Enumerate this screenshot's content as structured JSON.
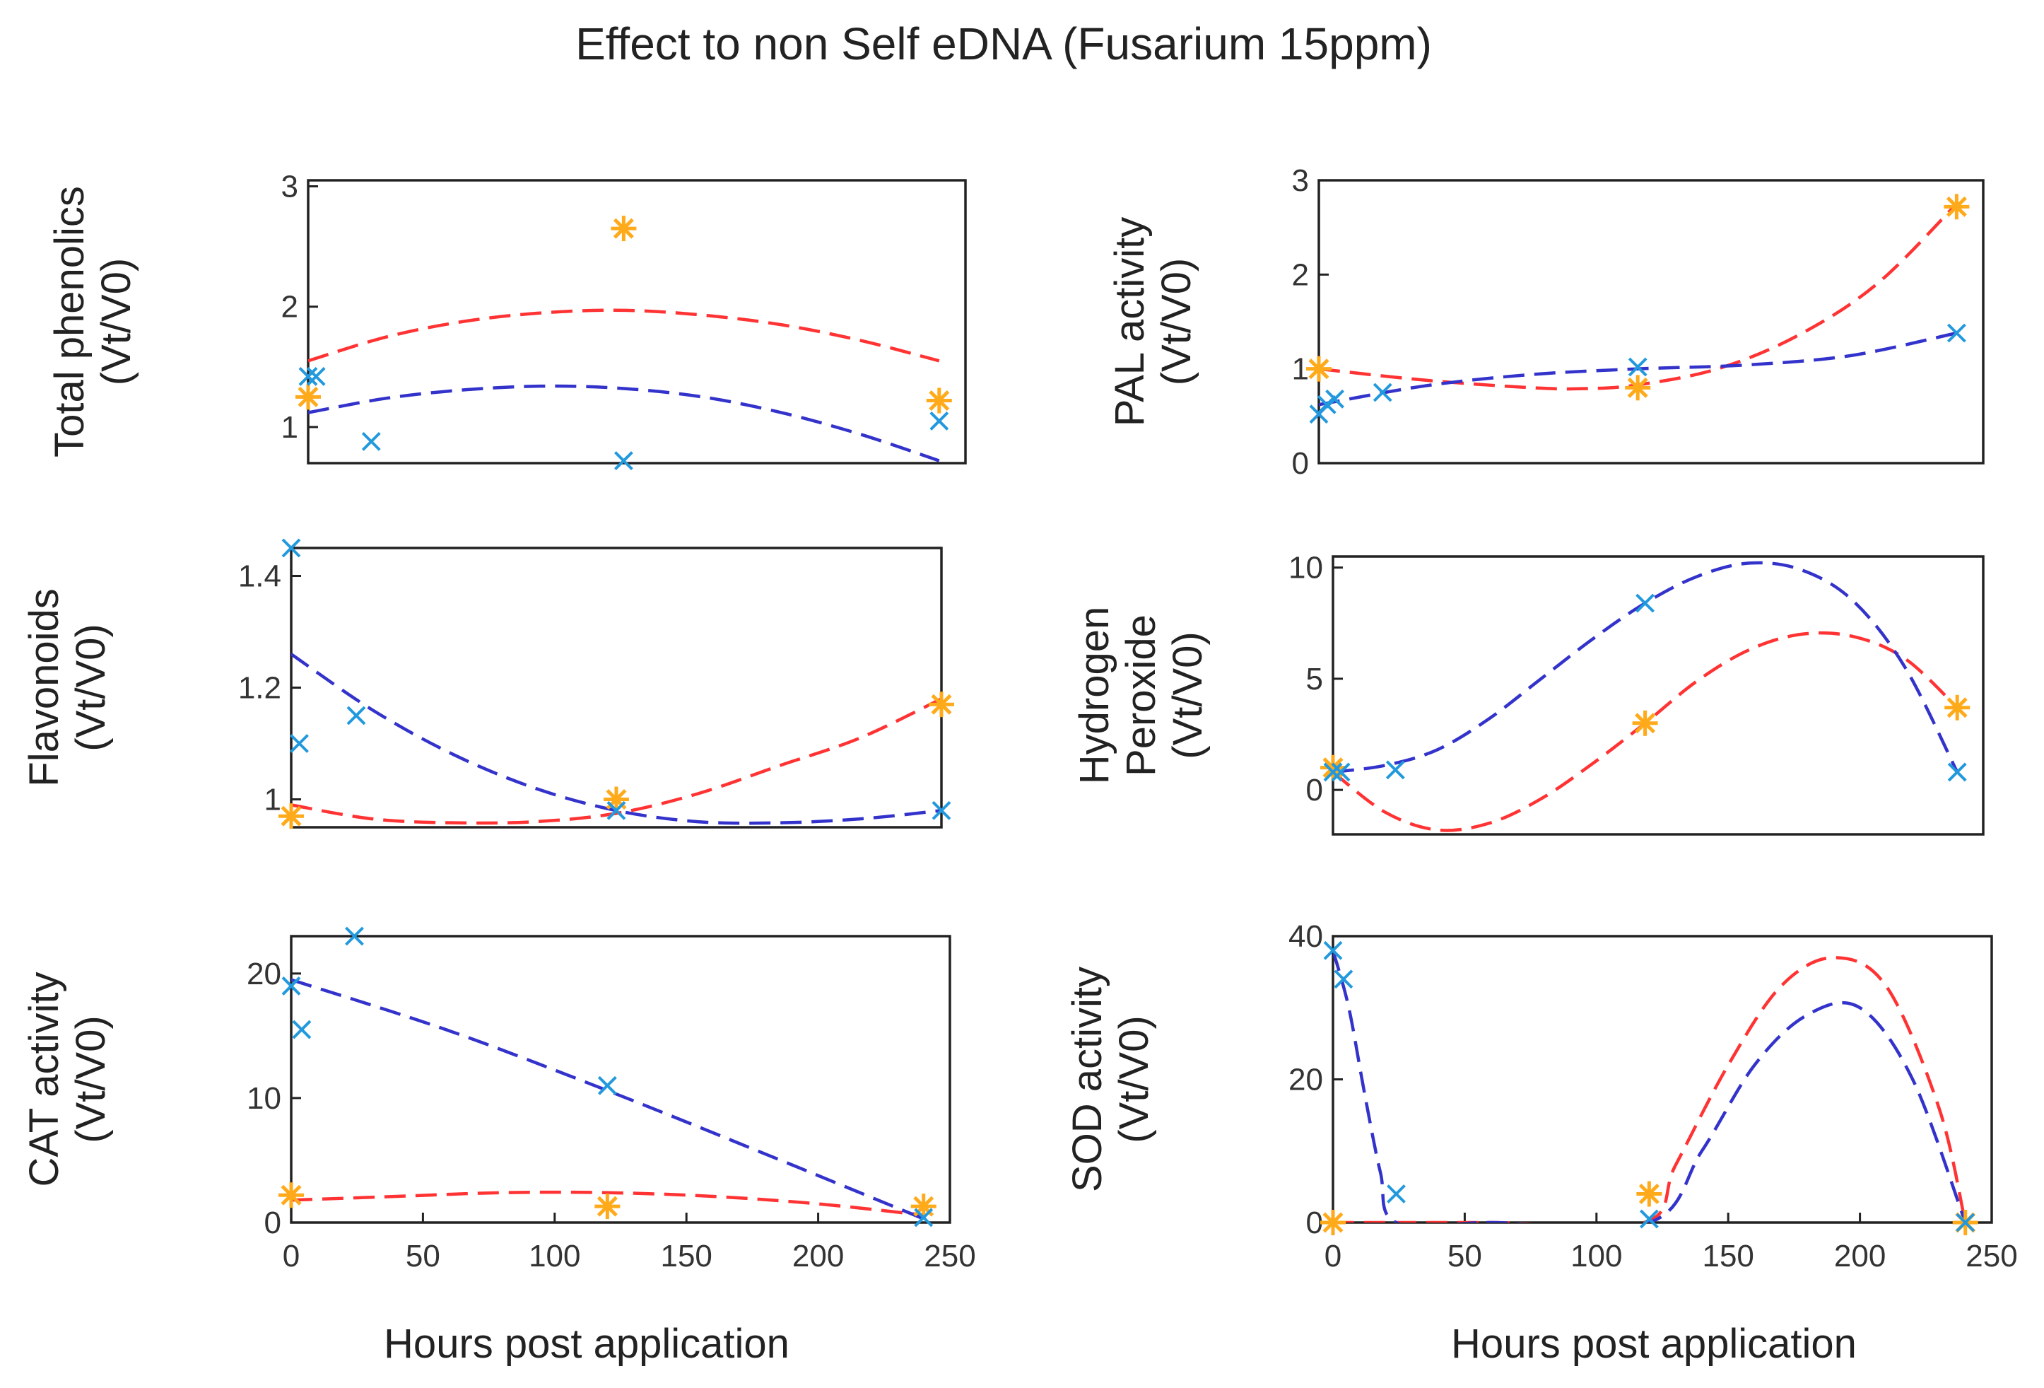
{
  "title": "Effect to non Self eDNA (Fusarium  15ppm)",
  "colors": {
    "fit_a": "#ff3333",
    "fit_b": "#3333cc",
    "marker_star": "#ffaa1a",
    "marker_x": "#2299dd"
  },
  "xlabels": [
    "Hours post application",
    "Hours post application"
  ],
  "chart_data": [
    {
      "type": "scatter",
      "title": "",
      "ylabel": [
        "Total phenolics",
        "(Vt/V0)"
      ],
      "xlabel": "",
      "xlim": [
        0,
        250
      ],
      "ylim": [
        0.7,
        3.05
      ],
      "xticks": [],
      "yticks": [
        1,
        2,
        3
      ],
      "series": [
        {
          "name": "red-fit",
          "kind": "line",
          "color": "fit_a",
          "x": [
            0,
            30,
            60,
            90,
            120,
            150,
            180,
            210,
            240
          ],
          "y": [
            1.55,
            1.75,
            1.88,
            1.95,
            1.97,
            1.93,
            1.85,
            1.72,
            1.55
          ]
        },
        {
          "name": "blue-fit",
          "kind": "line",
          "color": "fit_b",
          "x": [
            0,
            30,
            60,
            90,
            120,
            150,
            180,
            210,
            240
          ],
          "y": [
            1.12,
            1.24,
            1.31,
            1.34,
            1.32,
            1.25,
            1.12,
            0.94,
            0.72
          ]
        },
        {
          "name": "star-points",
          "kind": "star",
          "color": "marker_star",
          "x": [
            0,
            120,
            240
          ],
          "y": [
            1.25,
            2.65,
            1.22
          ]
        },
        {
          "name": "x-points",
          "kind": "x",
          "color": "marker_x",
          "x": [
            0,
            3,
            24,
            120,
            240
          ],
          "y": [
            1.42,
            1.42,
            0.88,
            0.72,
            1.05
          ]
        }
      ]
    },
    {
      "type": "scatter",
      "title": "",
      "ylabel": [
        "PAL activity",
        "(Vt/V0)"
      ],
      "xlabel": "",
      "xlim": [
        0,
        250
      ],
      "ylim": [
        0,
        3
      ],
      "xticks": [],
      "yticks": [
        0,
        1,
        2,
        3
      ],
      "series": [
        {
          "name": "red-fit",
          "kind": "line",
          "color": "fit_a",
          "x": [
            0,
            40,
            80,
            100,
            120,
            150,
            180,
            210,
            240
          ],
          "y": [
            1.0,
            0.88,
            0.8,
            0.79,
            0.83,
            1.0,
            1.35,
            1.9,
            2.75
          ]
        },
        {
          "name": "blue-fit",
          "kind": "line",
          "color": "fit_b",
          "x": [
            0,
            40,
            80,
            120,
            160,
            200,
            240
          ],
          "y": [
            0.62,
            0.82,
            0.94,
            1.0,
            1.04,
            1.14,
            1.38
          ]
        },
        {
          "name": "star-points",
          "kind": "star",
          "color": "marker_star",
          "x": [
            0,
            120,
            240
          ],
          "y": [
            1.0,
            0.8,
            2.72
          ]
        },
        {
          "name": "x-points",
          "kind": "x",
          "color": "marker_x",
          "x": [
            0,
            3,
            6,
            24,
            120,
            240
          ],
          "y": [
            0.52,
            0.62,
            0.68,
            0.75,
            1.02,
            1.38
          ]
        }
      ]
    },
    {
      "type": "scatter",
      "title": "",
      "ylabel": [
        "Flavonoids",
        "(Vt/V0)"
      ],
      "xlabel": "",
      "xlim": [
        0,
        240
      ],
      "ylim": [
        0.95,
        1.45
      ],
      "xticks": [],
      "yticks": [
        1,
        1.2,
        1.4
      ],
      "series": [
        {
          "name": "red-fit",
          "kind": "line",
          "color": "fit_a",
          "x": [
            0,
            30,
            60,
            90,
            120,
            150,
            180,
            210,
            240
          ],
          "y": [
            0.99,
            0.965,
            0.958,
            0.96,
            0.975,
            1.01,
            1.06,
            1.11,
            1.18
          ]
        },
        {
          "name": "blue-fit",
          "kind": "line",
          "color": "fit_b",
          "x": [
            0,
            30,
            60,
            90,
            120,
            150,
            180,
            210,
            240
          ],
          "y": [
            1.26,
            1.16,
            1.08,
            1.02,
            0.98,
            0.96,
            0.958,
            0.965,
            0.98
          ]
        },
        {
          "name": "star-points",
          "kind": "star",
          "color": "marker_star",
          "x": [
            0,
            120,
            240
          ],
          "y": [
            0.97,
            1.0,
            1.17
          ]
        },
        {
          "name": "x-points",
          "kind": "x",
          "color": "marker_x",
          "x": [
            0,
            3,
            24,
            120,
            240
          ],
          "y": [
            1.45,
            1.1,
            1.15,
            0.98,
            0.98
          ]
        }
      ]
    },
    {
      "type": "scatter",
      "title": "",
      "ylabel": [
        "Hydrogen",
        "Peroxide",
        "(Vt/V0)"
      ],
      "xlabel": "",
      "xlim": [
        0,
        250
      ],
      "ylim": [
        -2,
        10.5
      ],
      "xticks": [],
      "yticks": [
        0,
        5,
        10
      ],
      "series": [
        {
          "name": "red-fit",
          "kind": "line",
          "color": "fit_a",
          "x": [
            0,
            20,
            40,
            60,
            80,
            100,
            120,
            140,
            160,
            180,
            200,
            220,
            240
          ],
          "y": [
            0.8,
            -1.0,
            -1.8,
            -1.5,
            -0.4,
            1.2,
            3.0,
            4.9,
            6.3,
            7.0,
            6.9,
            5.9,
            3.7
          ]
        },
        {
          "name": "blue-fit",
          "kind": "line",
          "color": "fit_b",
          "x": [
            0,
            20,
            40,
            60,
            80,
            100,
            120,
            140,
            160,
            180,
            200,
            220,
            240
          ],
          "y": [
            0.8,
            1.1,
            1.8,
            3.2,
            5.0,
            6.8,
            8.4,
            9.6,
            10.2,
            9.9,
            8.5,
            5.5,
            0.8
          ]
        },
        {
          "name": "star-points",
          "kind": "star",
          "color": "marker_star",
          "x": [
            0,
            120,
            240
          ],
          "y": [
            1.0,
            3.0,
            3.7
          ]
        },
        {
          "name": "x-points",
          "kind": "x",
          "color": "marker_x",
          "x": [
            0,
            3,
            24,
            120,
            240
          ],
          "y": [
            0.8,
            0.8,
            0.9,
            8.4,
            0.8
          ]
        }
      ]
    },
    {
      "type": "scatter",
      "title": "",
      "ylabel": [
        "CAT activity",
        "(Vt/V0)"
      ],
      "xlabel": "",
      "xlim": [
        0,
        250
      ],
      "ylim": [
        0,
        23
      ],
      "xticks": [
        0,
        50,
        100,
        150,
        200,
        250
      ],
      "yticks": [
        0,
        10,
        20
      ],
      "series": [
        {
          "name": "red-fit",
          "kind": "line",
          "color": "fit_a",
          "x": [
            0,
            40,
            80,
            120,
            160,
            200,
            240
          ],
          "y": [
            1.8,
            2.1,
            2.4,
            2.4,
            2.1,
            1.5,
            0.6
          ]
        },
        {
          "name": "blue-fit",
          "kind": "line",
          "color": "fit_b",
          "x": [
            0,
            60,
            120,
            180,
            240
          ],
          "y": [
            19.5,
            15.4,
            10.6,
            5.5,
            0.3
          ]
        },
        {
          "name": "star-points",
          "kind": "star",
          "color": "marker_star",
          "x": [
            0,
            120,
            240
          ],
          "y": [
            2.2,
            1.3,
            1.3
          ]
        },
        {
          "name": "x-points",
          "kind": "x",
          "color": "marker_x",
          "x": [
            0,
            4,
            24,
            120,
            240
          ],
          "y": [
            19.0,
            15.5,
            23.0,
            11.0,
            0.4
          ]
        }
      ]
    },
    {
      "type": "scatter",
      "title": "",
      "ylabel": [
        "SOD activity",
        "(Vt/V0)"
      ],
      "xlabel": "",
      "xlim": [
        0,
        250
      ],
      "ylim": [
        0,
        40
      ],
      "xticks": [
        0,
        50,
        100,
        150,
        200,
        250
      ],
      "yticks": [
        0,
        20,
        40
      ],
      "series": [
        {
          "name": "red-fit",
          "kind": "line",
          "color": "fit_a",
          "x": [
            0,
            24,
            60,
            118,
            130,
            150,
            170,
            190,
            210,
            230,
            240
          ],
          "y": [
            0,
            0,
            0,
            0,
            8,
            22,
            33,
            37,
            33,
            16,
            0
          ]
        },
        {
          "name": "blue-fit",
          "kind": "line",
          "color": "fit_b",
          "x": [
            0,
            6,
            12,
            18,
            24,
            60,
            120,
            140,
            160,
            180,
            200,
            220,
            240
          ],
          "y": [
            38,
            30,
            18,
            7,
            0,
            0,
            0,
            10,
            22,
            29,
            30,
            20,
            0
          ]
        },
        {
          "name": "star-points",
          "kind": "star",
          "color": "marker_star",
          "x": [
            0,
            120,
            240
          ],
          "y": [
            0,
            4,
            0
          ]
        },
        {
          "name": "x-points",
          "kind": "x",
          "color": "marker_x",
          "x": [
            0,
            4,
            24,
            120,
            240
          ],
          "y": [
            38,
            34,
            4,
            0.5,
            0
          ]
        }
      ]
    }
  ]
}
